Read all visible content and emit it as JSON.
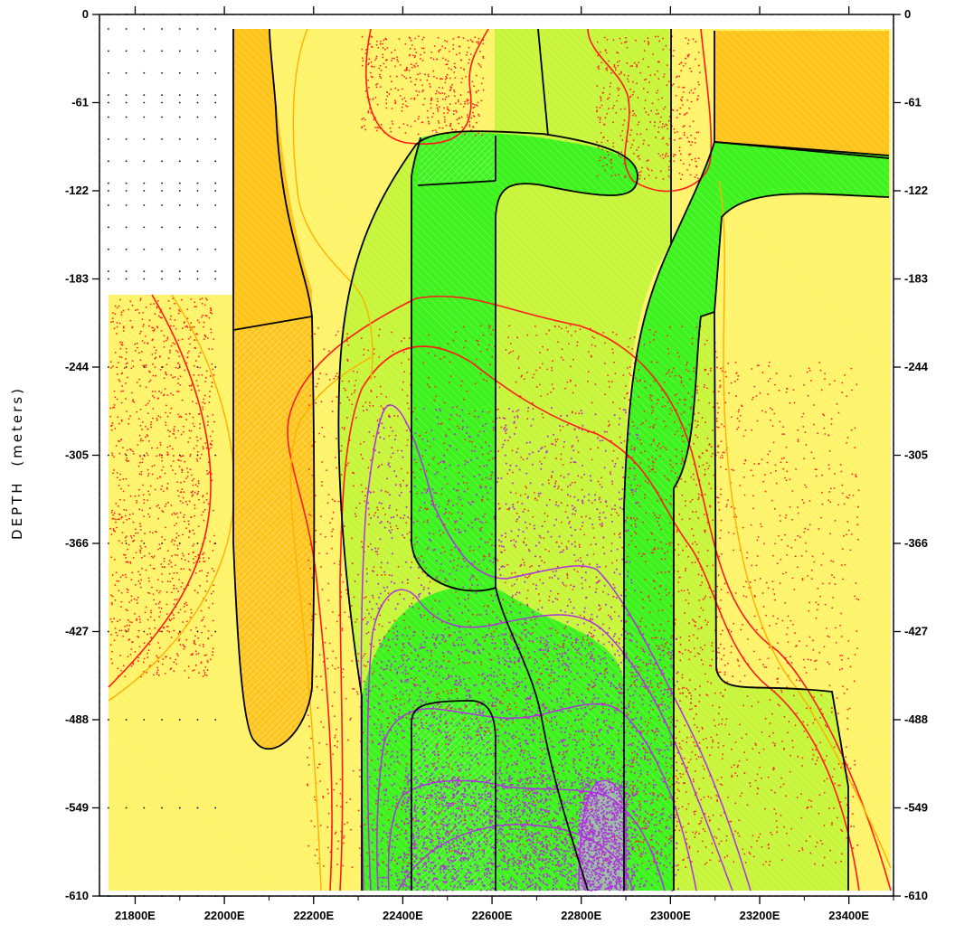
{
  "chart_data": {
    "type": "heatmap",
    "title": "",
    "ylabel": "DEPTH",
    "ylabel_unit": "(meters)",
    "xlabel": "",
    "xlim": [
      21720,
      23500
    ],
    "ylim": [
      -610,
      0
    ],
    "x_ticks": [
      21800,
      22000,
      22200,
      22400,
      22600,
      22800,
      23000,
      23200,
      23400
    ],
    "x_tick_labels": [
      "21800E",
      "22000E",
      "22200E",
      "22400E",
      "22600E",
      "22800E",
      "23000E",
      "23200E",
      "23400E"
    ],
    "y_ticks": [
      0,
      -61,
      -122,
      -183,
      -244,
      -305,
      -366,
      -427,
      -488,
      -549,
      -610
    ],
    "y_tick_labels": [
      "0",
      "-61",
      "-122",
      "-183",
      "-244",
      "-305",
      "-366",
      "-427",
      "-488",
      "-549",
      "-610"
    ],
    "grid": "dotted points",
    "data_extent": {
      "left_block_x": [
        21730,
        22000
      ],
      "left_block_top": -183,
      "main_top": -10
    },
    "zones": [
      {
        "name": "yellow background",
        "color": "#fff36a"
      },
      {
        "name": "orange",
        "color": "#ffc41a"
      },
      {
        "name": "yellow-green",
        "color": "#c6f53a"
      },
      {
        "name": "bright green",
        "color": "#3ef21e"
      }
    ],
    "contours": [
      {
        "color": "#ff1a1a",
        "name": "red contours"
      },
      {
        "color": "#ffb000",
        "name": "orange contours"
      },
      {
        "color": "#b030e0",
        "name": "purple contours"
      }
    ],
    "boundary_color": "#000000"
  }
}
